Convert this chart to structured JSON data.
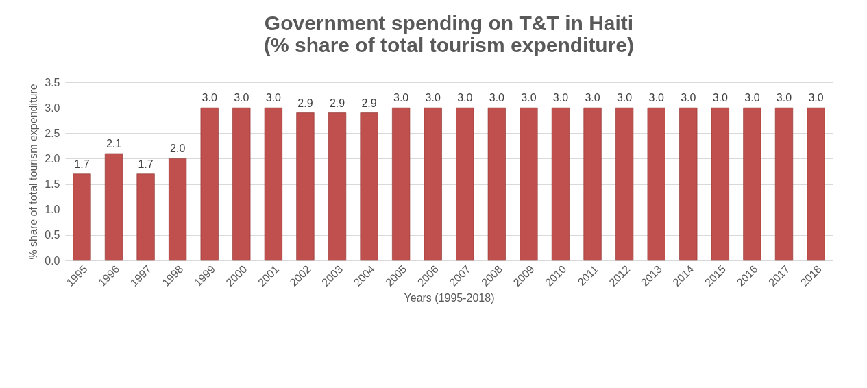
{
  "chart_data": {
    "type": "bar",
    "title": "Government spending on T&T in Haiti\n(% share of total tourism expenditure)",
    "xlabel": "Years (1995-2018)",
    "ylabel": "% share of total tourism expenditure",
    "categories": [
      "1995",
      "1996",
      "1997",
      "1998",
      "1999",
      "2000",
      "2001",
      "2002",
      "2003",
      "2004",
      "2005",
      "2006",
      "2007",
      "2008",
      "2009",
      "2010",
      "2011",
      "2012",
      "2013",
      "2014",
      "2015",
      "2016",
      "2017",
      "2018"
    ],
    "values": [
      1.7,
      2.1,
      1.7,
      2.0,
      3.0,
      3.0,
      3.0,
      2.9,
      2.9,
      2.9,
      3.0,
      3.0,
      3.0,
      3.0,
      3.0,
      3.0,
      3.0,
      3.0,
      3.0,
      3.0,
      3.0,
      3.0,
      3.0,
      3.0
    ],
    "color": "#c0504d",
    "value_labels": [
      "1.7",
      "2.1",
      "1.7",
      "2.0",
      "3.0",
      "3.0",
      "3.0",
      "2.9",
      "2.9",
      "2.9",
      "3.0",
      "3.0",
      "3.0",
      "3.0",
      "3.0",
      "3.0",
      "3.0",
      "3.0",
      "3.0",
      "3.0",
      "3.0",
      "3.0",
      "3.0",
      "3.0"
    ],
    "ylim": [
      0,
      3.5
    ],
    "yticks": [
      {
        "value": 0,
        "label": "0.0"
      },
      0.5,
      {
        "value": 1,
        "label": "1.0"
      },
      1.5,
      {
        "value": 2,
        "label": "2.0"
      },
      2.5,
      {
        "value": 3,
        "label": "3.0"
      },
      3.5
    ],
    "grid": "y"
  }
}
